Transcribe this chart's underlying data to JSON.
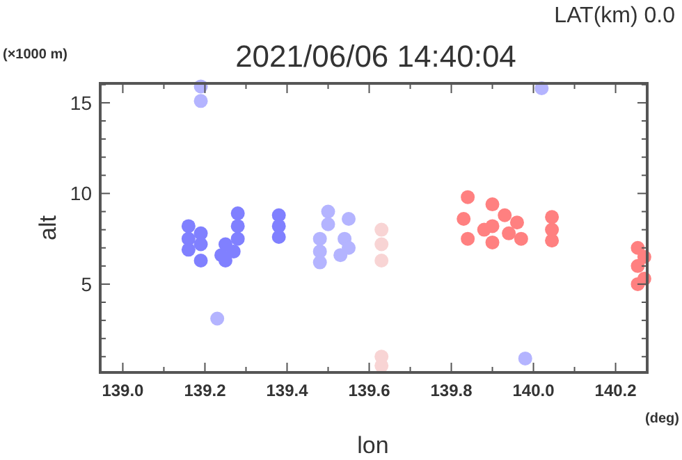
{
  "chart_data": {
    "type": "scatter",
    "title": "2021/06/06 14:40:04",
    "xlabel": "lon",
    "ylabel": "alt",
    "annotations": [
      "LAT(km) 0.0",
      "(×1000 m)",
      "(deg)"
    ],
    "xlim": [
      138.945,
      140.277
    ],
    "ylim": [
      0.13,
      16.07
    ],
    "xticks": [
      {
        "value": 139.0,
        "label": "139.0"
      },
      {
        "value": 139.1,
        "label": null
      },
      {
        "value": 139.2,
        "label": "139.2"
      },
      {
        "value": 139.3,
        "label": null
      },
      {
        "value": 139.4,
        "label": "139.4"
      },
      {
        "value": 139.5,
        "label": null
      },
      {
        "value": 139.6,
        "label": "139.6"
      },
      {
        "value": 139.7,
        "label": null
      },
      {
        "value": 139.8,
        "label": "139.8"
      },
      {
        "value": 139.9,
        "label": null
      },
      {
        "value": 140.0,
        "label": "140.0"
      },
      {
        "value": 140.1,
        "label": null
      },
      {
        "value": 140.2,
        "label": "140.2"
      }
    ],
    "yticks": [
      {
        "value": 1,
        "label": null
      },
      {
        "value": 2,
        "label": null
      },
      {
        "value": 3,
        "label": null
      },
      {
        "value": 4,
        "label": null
      },
      5,
      {
        "value": 6,
        "label": null
      },
      {
        "value": 7,
        "label": null
      },
      {
        "value": 8,
        "label": null
      },
      {
        "value": 9,
        "label": null
      },
      10,
      {
        "value": 11,
        "label": null
      },
      {
        "value": 12,
        "label": null
      },
      {
        "value": 13,
        "label": null
      },
      {
        "value": 14,
        "label": null
      },
      15,
      {
        "value": 16,
        "label": null
      }
    ],
    "grid": false,
    "marker": "circle",
    "series": [
      {
        "color": "#8080ff",
        "x": [
          139.16,
          139.16,
          139.16,
          139.19,
          139.19,
          139.19,
          139.28,
          139.28,
          139.28,
          139.27,
          139.25,
          139.25,
          139.24,
          139.38,
          139.38,
          139.38
        ],
        "values": [
          8.2,
          7.5,
          6.9,
          7.8,
          7.2,
          6.3,
          8.9,
          8.2,
          7.5,
          6.8,
          6.3,
          7.2,
          6.6,
          8.8,
          8.2,
          7.6
        ]
      },
      {
        "color": "#b4b4ff",
        "x": [
          139.48,
          139.48,
          139.48,
          139.5,
          139.5,
          139.54,
          139.55,
          139.53,
          139.55,
          139.19,
          139.19,
          140.02,
          139.23,
          139.98
        ],
        "values": [
          7.5,
          6.8,
          6.2,
          9.0,
          8.3,
          7.5,
          7.0,
          6.6,
          8.6,
          15.9,
          15.1,
          15.8,
          3.1,
          0.9
        ]
      },
      {
        "color": "#f8d4d4",
        "x": [
          139.63,
          139.63,
          139.63,
          139.63,
          139.63
        ],
        "values": [
          8.0,
          7.2,
          6.3,
          1.0,
          0.5
        ]
      },
      {
        "color": "#ff8080",
        "x": [
          139.84,
          139.83,
          139.84,
          139.88,
          139.9,
          139.9,
          139.9,
          139.93,
          139.94,
          139.96,
          139.97,
          140.045,
          140.045,
          140.045,
          140.254,
          140.254,
          140.254,
          140.27,
          140.27
        ],
        "values": [
          9.8,
          8.6,
          7.5,
          8.0,
          9.4,
          8.2,
          7.3,
          8.8,
          7.8,
          8.4,
          7.5,
          8.7,
          8.0,
          7.4,
          7.0,
          6.0,
          5.0,
          6.5,
          5.3
        ]
      }
    ]
  }
}
